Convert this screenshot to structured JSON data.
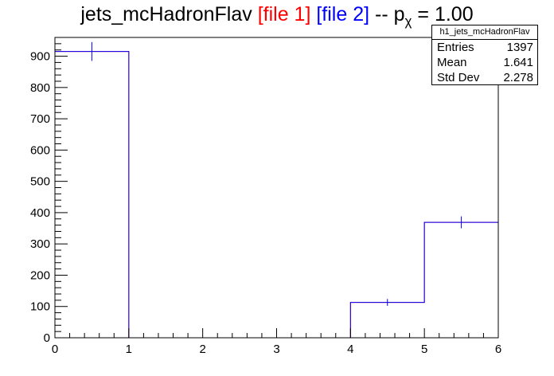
{
  "title": {
    "main": "jets_mcHadronFlav",
    "file1": "[file 1]",
    "file2": "[file 2]",
    "sep": "--",
    "p": "p",
    "chi": "χ",
    "eq": "= 1.00"
  },
  "stats": {
    "name": "h1_jets_mcHadronFlav",
    "rows": [
      {
        "label": "Entries",
        "value": "1397"
      },
      {
        "label": "Mean",
        "value": "1.641"
      },
      {
        "label": "Std Dev",
        "value": "2.278"
      }
    ]
  },
  "colors": {
    "file1": "#ff0000",
    "file2": "#0000ff"
  },
  "chart_data": {
    "type": "bar",
    "histogram": true,
    "bin_edges": [
      0,
      1,
      2,
      3,
      4,
      5,
      6
    ],
    "xlim": [
      0,
      6
    ],
    "ylim": [
      0,
      960
    ],
    "xticks": [
      0,
      1,
      2,
      3,
      4,
      5,
      6
    ],
    "yticks": [
      0,
      100,
      200,
      300,
      400,
      500,
      600,
      700,
      800,
      900
    ],
    "series": [
      {
        "name": "[file 1]",
        "color": "#ff0000",
        "values": [
          915,
          0,
          0,
          0,
          113,
          369
        ]
      },
      {
        "name": "[file 2]",
        "color": "#0000ff",
        "values": [
          915,
          0,
          0,
          0,
          113,
          369
        ],
        "errors": [
          30,
          0,
          0,
          0,
          11,
          19
        ]
      }
    ]
  }
}
